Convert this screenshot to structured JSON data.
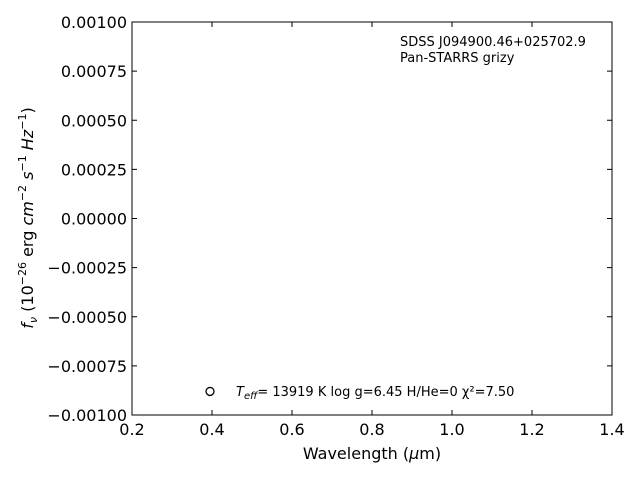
{
  "chart_data": {
    "type": "scatter",
    "xlabel": "Wavelength (μm)",
    "ylabel": "f_ν (10^-26 erg cm^-2 s^-1 Hz^-1)",
    "xlim": [
      0.2,
      1.4
    ],
    "ylim": [
      -0.001,
      0.001
    ],
    "x_ticks": [
      0.2,
      0.4,
      0.6,
      0.8,
      1.0,
      1.2,
      1.4
    ],
    "x_tick_labels": [
      "0.2",
      "0.4",
      "0.6",
      "0.8",
      "1.0",
      "1.2",
      "1.4"
    ],
    "y_ticks": [
      0.001,
      0.00075,
      0.0005,
      0.00025,
      0.0,
      -0.00025,
      -0.0005,
      -0.00075,
      -0.001
    ],
    "y_tick_labels": [
      "0.00100",
      "0.00075",
      "0.00050",
      "0.00025",
      "0.00000",
      "−0.00025",
      "−0.00050",
      "−0.00075",
      "−0.00100"
    ],
    "grid": false,
    "annotations": {
      "object_name": "SDSS J094900.46+025702.9",
      "survey": "Pan-STARRS grizy",
      "legend_text": "= 13919 K  log g=6.45  H/He=0  χ²=7.50",
      "teff_symbol": "T",
      "teff_subscript": "eff"
    },
    "legend_marker": {
      "x": 0.395,
      "y": -0.00088,
      "style": "open-circle"
    }
  }
}
